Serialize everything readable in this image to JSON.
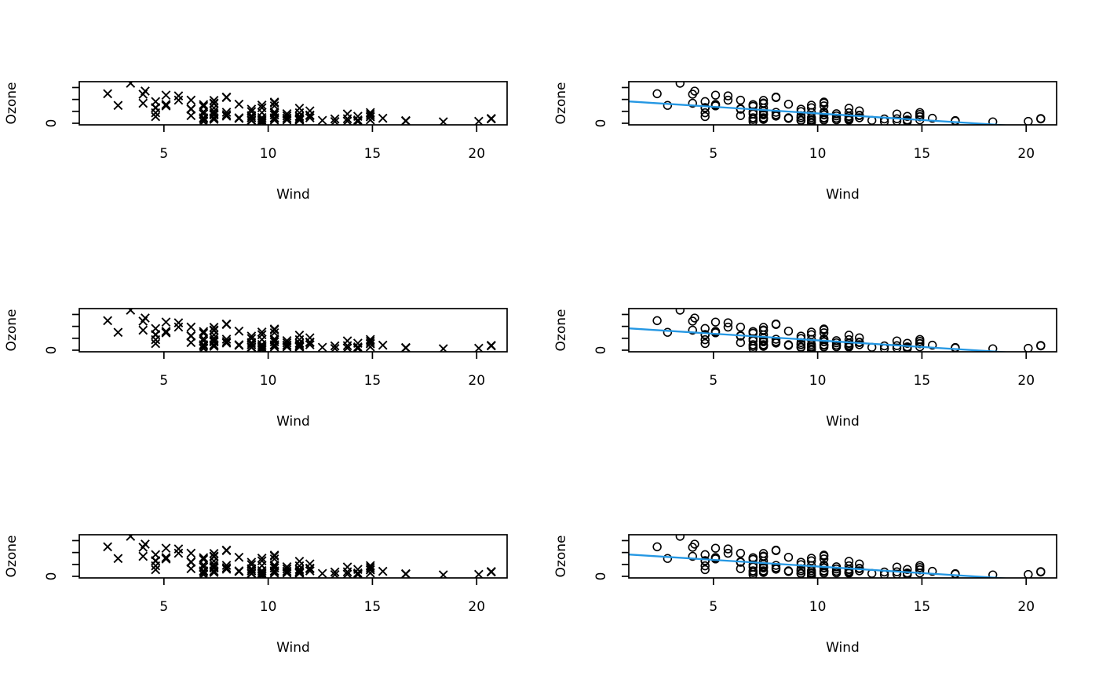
{
  "figure": {
    "background": "#ffffff",
    "grid_rows": 3,
    "grid_cols": 2,
    "description": "3x2 grid of base-R scatter plots of Ozone versus Wind; left column uses cross markers, right column uses open circle markers with a straight blue least-squares fit line"
  },
  "axes": {
    "xlabel": "Wind",
    "ylabel": "Ozone",
    "x_tick_labels": [
      "5",
      "10",
      "15",
      "20"
    ],
    "x_tick_values": [
      5,
      10,
      15,
      20
    ],
    "y_tick_values": [
      0,
      50,
      100,
      150
    ],
    "y_tick_labels": [
      "0",
      "",
      "",
      ""
    ],
    "xlim": [
      0.94,
      21.46
    ],
    "ylim": [
      -6.7,
      174.66
    ]
  },
  "style": {
    "point_color": "#000000",
    "axis_color": "#000000",
    "fit_line_color": "#2497e3"
  },
  "chart_data": {
    "type": "scatter",
    "title": "",
    "xlabel": "Wind",
    "ylabel": "Ozone",
    "xlim": [
      0.94,
      21.46
    ],
    "ylim": [
      -6.7,
      174.66
    ],
    "grid": false,
    "legend": false,
    "panels": [
      {
        "id": "top-left",
        "row": 0,
        "col": 0,
        "marker": "cross",
        "fit_line": false
      },
      {
        "id": "top-right",
        "row": 0,
        "col": 1,
        "marker": "circle",
        "fit_line": true
      },
      {
        "id": "middle-left",
        "row": 1,
        "col": 0,
        "marker": "cross",
        "fit_line": false
      },
      {
        "id": "middle-right",
        "row": 1,
        "col": 1,
        "marker": "circle",
        "fit_line": true
      },
      {
        "id": "bottom-left",
        "row": 2,
        "col": 0,
        "marker": "cross",
        "fit_line": false
      },
      {
        "id": "bottom-right",
        "row": 2,
        "col": 1,
        "marker": "circle",
        "fit_line": true
      }
    ],
    "fit_line": {
      "slope": -5.5509,
      "intercept": 96.8729,
      "color": "#2497e3"
    },
    "points_xy": [
      [
        7.4,
        41
      ],
      [
        8.0,
        36
      ],
      [
        12.6,
        12
      ],
      [
        11.5,
        18
      ],
      [
        14.9,
        28
      ],
      [
        8.6,
        23
      ],
      [
        13.8,
        19
      ],
      [
        20.1,
        8
      ],
      [
        6.9,
        7
      ],
      [
        9.7,
        16
      ],
      [
        9.2,
        11
      ],
      [
        10.9,
        14
      ],
      [
        13.2,
        18
      ],
      [
        11.5,
        14
      ],
      [
        12.0,
        34
      ],
      [
        18.4,
        6
      ],
      [
        11.5,
        30
      ],
      [
        9.7,
        11
      ],
      [
        9.7,
        1
      ],
      [
        16.6,
        11
      ],
      [
        9.7,
        4
      ],
      [
        12.0,
        32
      ],
      [
        12.0,
        23
      ],
      [
        14.9,
        45
      ],
      [
        5.7,
        115
      ],
      [
        7.4,
        37
      ],
      [
        14.3,
        29
      ],
      [
        6.9,
        71
      ],
      [
        13.8,
        39
      ],
      [
        9.2,
        23
      ],
      [
        11.5,
        21
      ],
      [
        14.9,
        37
      ],
      [
        20.7,
        20
      ],
      [
        9.2,
        12
      ],
      [
        11.5,
        13
      ],
      [
        4.1,
        135
      ],
      [
        9.2,
        49
      ],
      [
        9.2,
        32
      ],
      [
        4.6,
        64
      ],
      [
        10.9,
        40
      ],
      [
        5.1,
        77
      ],
      [
        6.3,
        97
      ],
      [
        5.7,
        97
      ],
      [
        7.4,
        85
      ],
      [
        14.3,
        10
      ],
      [
        14.9,
        27
      ],
      [
        14.3,
        7
      ],
      [
        6.9,
        48
      ],
      [
        10.3,
        35
      ],
      [
        6.3,
        61
      ],
      [
        5.1,
        79
      ],
      [
        11.5,
        63
      ],
      [
        6.9,
        16
      ],
      [
        8.6,
        80
      ],
      [
        8.0,
        108
      ],
      [
        8.6,
        20
      ],
      [
        12.0,
        52
      ],
      [
        7.4,
        82
      ],
      [
        7.4,
        50
      ],
      [
        7.4,
        64
      ],
      [
        9.2,
        59
      ],
      [
        6.9,
        39
      ],
      [
        13.8,
        9
      ],
      [
        7.4,
        16
      ],
      [
        6.9,
        78
      ],
      [
        7.4,
        35
      ],
      [
        4.6,
        66
      ],
      [
        4.0,
        122
      ],
      [
        10.3,
        89
      ],
      [
        8.0,
        110
      ],
      [
        11.5,
        44
      ],
      [
        11.5,
        28
      ],
      [
        9.7,
        65
      ],
      [
        10.3,
        22
      ],
      [
        6.3,
        59
      ],
      [
        7.4,
        23
      ],
      [
        10.9,
        31
      ],
      [
        10.3,
        44
      ],
      [
        15.5,
        21
      ],
      [
        14.3,
        9
      ],
      [
        9.7,
        45
      ],
      [
        3.4,
        168
      ],
      [
        10.3,
        73
      ],
      [
        9.7,
        76
      ],
      [
        5.1,
        118
      ],
      [
        4.0,
        84
      ],
      [
        10.3,
        85
      ],
      [
        7.4,
        96
      ],
      [
        6.9,
        78
      ],
      [
        5.1,
        73
      ],
      [
        4.6,
        91
      ],
      [
        10.3,
        47
      ],
      [
        6.3,
        32
      ],
      [
        7.4,
        20
      ],
      [
        10.3,
        23
      ],
      [
        10.9,
        21
      ],
      [
        9.2,
        24
      ],
      [
        4.6,
        44
      ],
      [
        10.9,
        21
      ],
      [
        4.6,
        28
      ],
      [
        16.6,
        9
      ],
      [
        9.2,
        13
      ],
      [
        8.0,
        46
      ],
      [
        11.5,
        18
      ],
      [
        11.5,
        13
      ],
      [
        9.7,
        24
      ],
      [
        11.5,
        16
      ],
      [
        10.3,
        13
      ],
      [
        6.9,
        23
      ],
      [
        10.3,
        36
      ],
      [
        13.2,
        7
      ],
      [
        14.3,
        14
      ],
      [
        8.0,
        30
      ],
      [
        14.9,
        14
      ],
      [
        20.7,
        18
      ],
      [
        10.3,
        20
      ],
      [
        2.3,
        124
      ],
      [
        2.8,
        75
      ]
    ]
  }
}
